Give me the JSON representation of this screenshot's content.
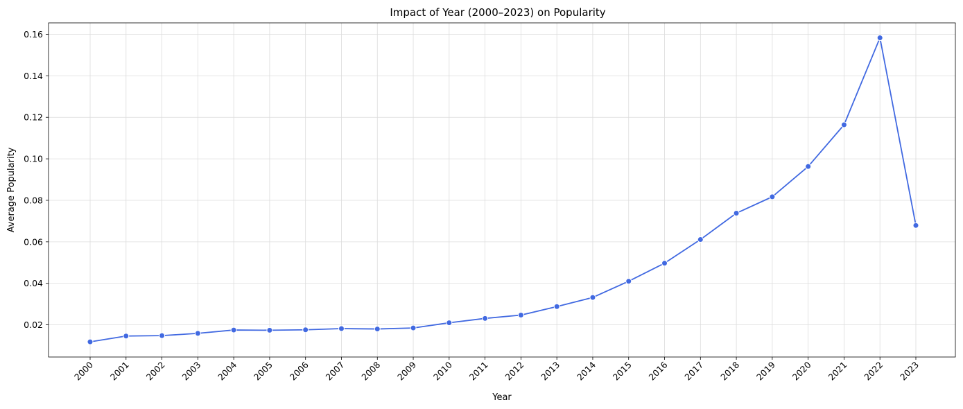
{
  "chart_data": {
    "type": "line",
    "title": "Impact of Year (2000–2023) on Popularity",
    "xlabel": "Year",
    "ylabel": "Average Popularity",
    "x": [
      "2000",
      "2001",
      "2002",
      "2003",
      "2004",
      "2005",
      "2006",
      "2007",
      "2008",
      "2009",
      "2010",
      "2011",
      "2012",
      "2013",
      "2014",
      "2015",
      "2016",
      "2017",
      "2018",
      "2019",
      "2020",
      "2021",
      "2022",
      "2023"
    ],
    "series": [
      {
        "values": [
          0.0118,
          0.0146,
          0.0148,
          0.0159,
          0.0175,
          0.0174,
          0.0176,
          0.0182,
          0.018,
          0.0185,
          0.021,
          0.0231,
          0.0247,
          0.0288,
          0.0332,
          0.041,
          0.0497,
          0.0611,
          0.0738,
          0.0817,
          0.0963,
          0.1164,
          0.1583,
          0.0679
        ],
        "color": "#4169e1",
        "marker": "circle"
      }
    ],
    "yticks": [
      "0.02",
      "0.04",
      "0.06",
      "0.08",
      "0.10",
      "0.12",
      "0.14",
      "0.16"
    ],
    "ylim": [
      0.0045,
      0.1655
    ],
    "grid": true,
    "x_tick_rotation": "45 degrees"
  }
}
